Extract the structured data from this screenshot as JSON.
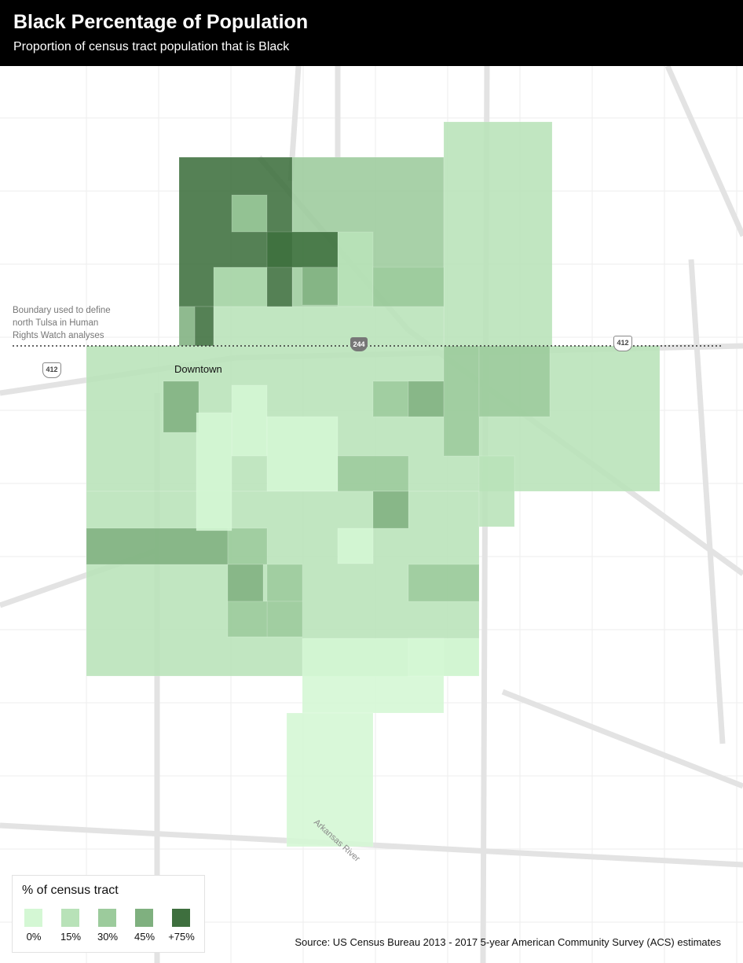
{
  "header": {
    "title": "Black Percentage of Population",
    "subtitle": "Proportion of census tract population that is Black"
  },
  "map": {
    "annotation": "Boundary used to define north Tulsa in Human Rights Watch analyses",
    "place_label": "Downtown",
    "river_label": "Arkansas River",
    "highway_shields": [
      {
        "label": "412",
        "type": "us"
      },
      {
        "label": "244",
        "type": "interstate"
      },
      {
        "label": "412",
        "type": "us"
      }
    ]
  },
  "legend": {
    "title": "% of census tract",
    "items": [
      {
        "label": "0%",
        "color": "#d4f7d4"
      },
      {
        "label": "15%",
        "color": "#b8e2b8"
      },
      {
        "label": "30%",
        "color": "#9ccb9c"
      },
      {
        "label": "45%",
        "color": "#7fb07f"
      },
      {
        "label": "+75%",
        "color": "#3e6f3e"
      }
    ]
  },
  "source": "Source: US Census Bureau 2013 - 2017 5-year American Community Survey (ACS) estimates"
}
